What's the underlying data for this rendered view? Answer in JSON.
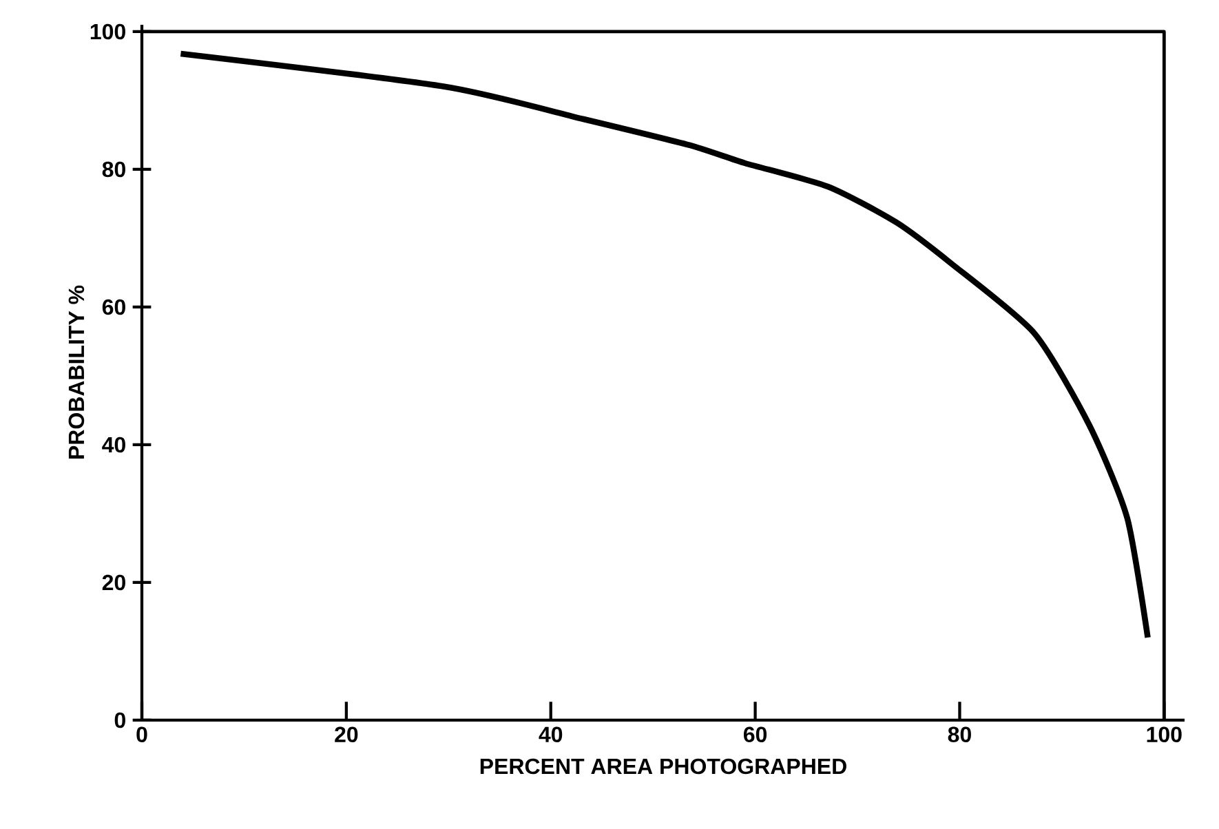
{
  "chart_data": {
    "type": "line",
    "xlabel": "PERCENT AREA PHOTOGRAPHED",
    "ylabel": "PROBABILITY %",
    "xlim": [
      0,
      102
    ],
    "ylim": [
      0,
      101
    ],
    "xticks": [
      0,
      20,
      40,
      60,
      80,
      100
    ],
    "yticks": [
      0,
      20,
      40,
      60,
      80,
      100
    ],
    "marker": "none",
    "line_style": "solid",
    "series": [
      {
        "color": "#000000",
        "x": [
          0,
          100,
          100
        ],
        "values": [
          100,
          100,
          0
        ]
      },
      {
        "color": "#000000",
        "x": [
          3.8,
          29.7,
          43.2,
          53.6,
          59.0,
          67.1,
          73.8,
          79.2,
          87.3,
          92.7,
          96.4,
          98.4
        ],
        "values": [
          96.8,
          92.0,
          87.3,
          83.5,
          80.9,
          77.5,
          72.3,
          66.3,
          56.2,
          42.8,
          29.3,
          12.0
        ]
      }
    ]
  }
}
